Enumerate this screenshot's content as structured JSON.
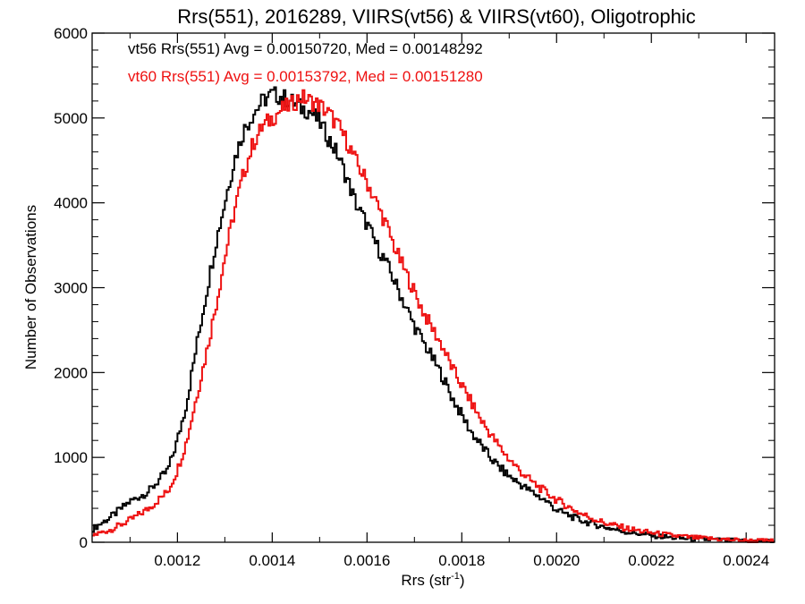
{
  "chart_data": {
    "type": "line",
    "style": "step-histogram",
    "title": "Rrs(551), 2016289, VIIRS(vt56) & VIIRS(vt60), Oligotrophic",
    "xlabel": "Rrs (str",
    "xlabel_sup": "-1",
    "xlabel_close": ")",
    "ylabel": "Number of Observations",
    "xlim": [
      0.00102,
      0.00246
    ],
    "ylim": [
      0,
      6000
    ],
    "x_ticks": [
      0.0012,
      0.0014,
      0.0016,
      0.0018,
      0.002,
      0.0022,
      0.0024
    ],
    "x_tick_labels": [
      "0.0012",
      "0.0014",
      "0.0016",
      "0.0018",
      "0.0020",
      "0.0022",
      "0.0024"
    ],
    "y_ticks": [
      0,
      1000,
      2000,
      3000,
      4000,
      5000,
      6000
    ],
    "y_tick_labels": [
      "0",
      "1000",
      "2000",
      "3000",
      "4000",
      "5000",
      "6000"
    ],
    "grid": false,
    "legend_position": "top-left",
    "series": [
      {
        "name": "vt56",
        "legend_text": "vt56 Rrs(551) Avg = 0.00150720, Med = 0.00148292",
        "color": "#000000",
        "x": [
          0.00102,
          0.00106,
          0.0011,
          0.00114,
          0.00118,
          0.0012,
          0.00122,
          0.00124,
          0.00126,
          0.00128,
          0.0013,
          0.00132,
          0.00134,
          0.00136,
          0.00138,
          0.0014,
          0.00142,
          0.00144,
          0.00146,
          0.00148,
          0.0015,
          0.00152,
          0.00154,
          0.00156,
          0.00158,
          0.0016,
          0.00162,
          0.00164,
          0.00166,
          0.00168,
          0.0017,
          0.00172,
          0.00174,
          0.00176,
          0.00178,
          0.0018,
          0.00182,
          0.00184,
          0.00186,
          0.00188,
          0.0019,
          0.00192,
          0.00194,
          0.00196,
          0.00198,
          0.002,
          0.00205,
          0.0021,
          0.00215,
          0.0022,
          0.00225,
          0.0023,
          0.00235,
          0.0024,
          0.00246
        ],
        "y": [
          150,
          300,
          480,
          600,
          850,
          1200,
          1650,
          2300,
          2900,
          3500,
          4000,
          4500,
          4850,
          5050,
          5200,
          5280,
          5250,
          5200,
          5120,
          5080,
          4950,
          4750,
          4550,
          4250,
          3950,
          3750,
          3500,
          3300,
          3050,
          2800,
          2550,
          2350,
          2150,
          1950,
          1700,
          1500,
          1300,
          1150,
          1000,
          880,
          780,
          700,
          620,
          550,
          480,
          380,
          260,
          180,
          120,
          80,
          50,
          35,
          25,
          15,
          10
        ]
      },
      {
        "name": "vt60",
        "legend_text": "vt60 Rrs(551) Avg = 0.00153792, Med = 0.00151280",
        "color": "#ee1111",
        "x": [
          0.00102,
          0.00106,
          0.0011,
          0.00114,
          0.00118,
          0.0012,
          0.00122,
          0.00124,
          0.00126,
          0.00128,
          0.0013,
          0.00132,
          0.00134,
          0.00136,
          0.00138,
          0.0014,
          0.00142,
          0.00144,
          0.00146,
          0.00148,
          0.0015,
          0.00152,
          0.00154,
          0.00156,
          0.00158,
          0.0016,
          0.00162,
          0.00164,
          0.00166,
          0.00168,
          0.0017,
          0.00172,
          0.00174,
          0.00176,
          0.00178,
          0.0018,
          0.00182,
          0.00184,
          0.00186,
          0.00188,
          0.0019,
          0.00192,
          0.00194,
          0.00196,
          0.00198,
          0.002,
          0.00205,
          0.0021,
          0.00215,
          0.0022,
          0.00225,
          0.0023,
          0.00235,
          0.0024,
          0.00246
        ],
        "y": [
          80,
          150,
          260,
          400,
          600,
          850,
          1200,
          1700,
          2200,
          2750,
          3350,
          3900,
          4350,
          4700,
          4900,
          5000,
          5100,
          5150,
          5250,
          5200,
          5150,
          5050,
          4900,
          4700,
          4450,
          4250,
          4000,
          3750,
          3450,
          3200,
          2950,
          2700,
          2500,
          2300,
          2050,
          1850,
          1650,
          1450,
          1280,
          1120,
          980,
          860,
          750,
          660,
          580,
          500,
          340,
          230,
          160,
          110,
          75,
          50,
          35,
          20,
          15
        ]
      }
    ]
  }
}
